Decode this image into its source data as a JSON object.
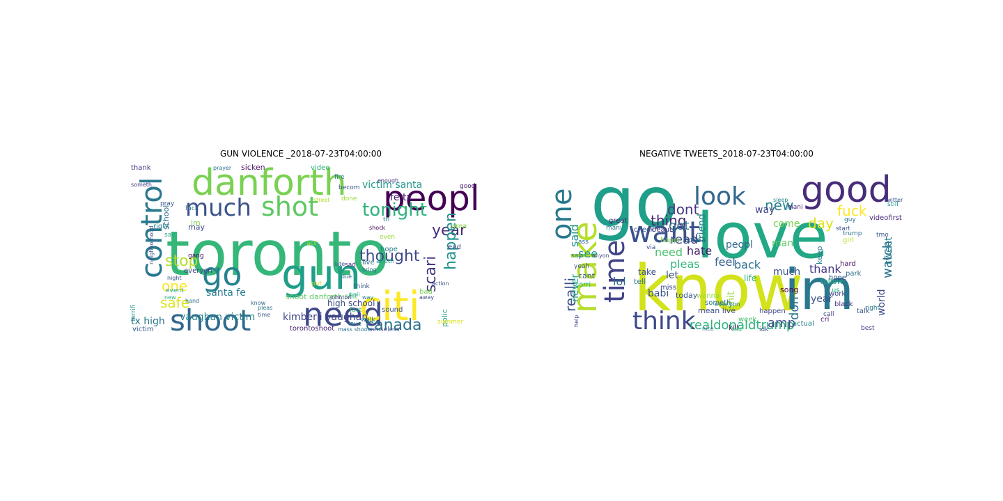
{
  "clouds": [
    {
      "title": "GUN VIOLENCE _2018-07-23T04:00:00",
      "words": [
        {
          "text": "toronto",
          "color": "#35b779"
        },
        {
          "text": "danforth",
          "color": "#7ad151"
        },
        {
          "text": "peopl",
          "color": "#440154"
        },
        {
          "text": "control",
          "color": "#2a788e"
        },
        {
          "text": "much",
          "color": "#3b528b"
        },
        {
          "text": "shot",
          "color": "#5ec962"
        },
        {
          "text": "go",
          "color": "#26828e"
        },
        {
          "text": "gun",
          "color": "#1f9e89"
        },
        {
          "text": "shoot",
          "color": "#31688e"
        },
        {
          "text": "need",
          "color": "#3e4989"
        },
        {
          "text": "citi",
          "color": "#fde725"
        },
        {
          "text": "tonight",
          "color": "#2db27d"
        },
        {
          "text": "year",
          "color": "#472d7b"
        },
        {
          "text": "happen",
          "color": "#21918c"
        },
        {
          "text": "thought",
          "color": "#3e4a89"
        },
        {
          "text": "scari",
          "color": "#443983"
        },
        {
          "text": "stop",
          "color": "#b5de2b"
        },
        {
          "text": "one",
          "color": "#fde725"
        },
        {
          "text": "safe",
          "color": "#dde318"
        },
        {
          "text": "canada",
          "color": "#2c728e"
        },
        {
          "text": "victim santa",
          "color": "#1f988b"
        },
        {
          "text": "fe tx",
          "color": "#481f70"
        },
        {
          "text": "kimberli vaughan",
          "color": "#414487"
        },
        {
          "text": "vaughan victim",
          "color": "#25848e"
        },
        {
          "text": "tx high",
          "color": "#2a768e"
        },
        {
          "text": "santa fe",
          "color": "#287d8e"
        },
        {
          "text": "high school",
          "color": "#3e4c8a"
        },
        {
          "text": "shoot danforth",
          "color": "#5ec962"
        },
        {
          "text": "torontoshoot",
          "color": "#482475"
        },
        {
          "text": "fuck",
          "color": "#2e6d8e"
        },
        {
          "text": "say",
          "color": "#22a884"
        },
        {
          "text": "right",
          "color": "#277f8e"
        },
        {
          "text": "pray",
          "color": "#3b528b"
        },
        {
          "text": "thank",
          "color": "#453882"
        },
        {
          "text": "sicken",
          "color": "#471365"
        },
        {
          "text": "video",
          "color": "#29af7f"
        },
        {
          "text": "enough",
          "color": "#46337e"
        },
        {
          "text": "anoth",
          "color": "#20a486"
        },
        {
          "text": "live",
          "color": "#2e6e8e"
        },
        {
          "text": "sad",
          "color": "#482878"
        },
        {
          "text": "hope",
          "color": "#26818e"
        },
        {
          "text": "even",
          "color": "#95d840"
        },
        {
          "text": "sound",
          "color": "#3b518b"
        },
        {
          "text": "walk",
          "color": "#25838e"
        },
        {
          "text": "fact",
          "color": "#35b779"
        },
        {
          "text": "shit",
          "color": "#4ac16d"
        },
        {
          "text": "think",
          "color": "#38598c"
        },
        {
          "text": "love",
          "color": "#2a768e"
        },
        {
          "text": "senseless",
          "color": "#3b528b"
        },
        {
          "text": "mass shoot",
          "color": "#2c738e"
        },
        {
          "text": "victim",
          "color": "#39568c"
        },
        {
          "text": "everyon",
          "color": "#414487"
        },
        {
          "text": "gang",
          "color": "#471063"
        },
        {
          "text": "school",
          "color": "#2d718e"
        },
        {
          "text": "may",
          "color": "#3f4889"
        },
        {
          "text": "im",
          "color": "#7ad151"
        },
        {
          "text": "terrifi",
          "color": "#21918c"
        },
        {
          "text": "polic",
          "color": "#1fa088"
        },
        {
          "text": "end",
          "color": "#443a83"
        },
        {
          "text": "area",
          "color": "#8fd744"
        },
        {
          "text": "act",
          "color": "#addc30"
        },
        {
          "text": "put",
          "color": "#c2df23"
        },
        {
          "text": "know",
          "color": "#2f6b8e"
        },
        {
          "text": "time",
          "color": "#365c8d"
        },
        {
          "text": "pleas",
          "color": "#297a8e"
        },
        {
          "text": "bad",
          "color": "#7ad151"
        },
        {
          "text": "away",
          "color": "#3f4788"
        },
        {
          "text": "action",
          "color": "#3d4d8a"
        },
        {
          "text": "summer",
          "color": "#d8e219"
        },
        {
          "text": "holi",
          "color": "#1e9c89"
        },
        {
          "text": "johntori",
          "color": "#443983"
        },
        {
          "text": "someth",
          "color": "#453781"
        },
        {
          "text": "event",
          "color": "#20a386"
        },
        {
          "text": "fire",
          "color": "#2a778e"
        },
        {
          "text": "becom",
          "color": "#3a548c"
        },
        {
          "text": "done",
          "color": "#a0da39"
        },
        {
          "text": "good",
          "color": "#482071"
        },
        {
          "text": "late",
          "color": "#38588c"
        },
        {
          "text": "due",
          "color": "#31668e"
        },
        {
          "text": "way",
          "color": "#277e8e"
        },
        {
          "text": "hand",
          "color": "#2b758e"
        },
        {
          "text": "new",
          "color": "#26ad81"
        },
        {
          "text": "night",
          "color": "#3a538b"
        },
        {
          "text": "prayer",
          "color": "#2c728e"
        },
        {
          "text": "street",
          "color": "#addc30"
        },
        {
          "text": "shock",
          "color": "#440154"
        },
        {
          "text": "th",
          "color": "#24878e"
        },
        {
          "text": "neighborhood",
          "color": "#3c4f8a"
        },
        {
          "text": "bring",
          "color": "#2b758e"
        }
      ]
    },
    {
      "title": "NEGATIVE TWEETS_2018-07-23T04:00:00",
      "words": [
        {
          "text": "love",
          "color": "#22a884"
        },
        {
          "text": "go",
          "color": "#1f9e89"
        },
        {
          "text": "know",
          "color": "#d2e21b"
        },
        {
          "text": "im",
          "color": "#2a788e"
        },
        {
          "text": "want",
          "color": "#3b528b"
        },
        {
          "text": "good",
          "color": "#472c7a"
        },
        {
          "text": "look",
          "color": "#31688e"
        },
        {
          "text": "one",
          "color": "#2a788e"
        },
        {
          "text": "make",
          "color": "#b5de2b"
        },
        {
          "text": "time",
          "color": "#414487"
        },
        {
          "text": "think",
          "color": "#3e4989"
        },
        {
          "text": "realdonaldtrump",
          "color": "#2db27d"
        },
        {
          "text": "realli",
          "color": "#3b528b"
        },
        {
          "text": "fuck",
          "color": "#fde725"
        },
        {
          "text": "watch",
          "color": "#2c728e"
        },
        {
          "text": "tweet",
          "color": "#277f8e"
        },
        {
          "text": "day",
          "color": "#dde318"
        },
        {
          "text": "new",
          "color": "#26828e"
        },
        {
          "text": "dont",
          "color": "#443983"
        },
        {
          "text": "said",
          "color": "#21918c"
        },
        {
          "text": "thing",
          "color": "#482878"
        },
        {
          "text": "got",
          "color": "#2a768e"
        },
        {
          "text": "read",
          "color": "#3e4a89"
        },
        {
          "text": "need",
          "color": "#4ac16d"
        },
        {
          "text": "hate",
          "color": "#481f70"
        },
        {
          "text": "pleas",
          "color": "#35b779"
        },
        {
          "text": "feel",
          "color": "#355f8d"
        },
        {
          "text": "back",
          "color": "#2e6e8e"
        },
        {
          "text": "thank",
          "color": "#443983"
        },
        {
          "text": "year",
          "color": "#3b528b"
        },
        {
          "text": "don",
          "color": "#2c728e"
        },
        {
          "text": "amp",
          "color": "#3e4c8a"
        },
        {
          "text": "lol",
          "color": "#2e6e8e"
        },
        {
          "text": "see",
          "color": "#1f988b"
        },
        {
          "text": "let",
          "color": "#3a538b"
        },
        {
          "text": "never",
          "color": "#20a486"
        },
        {
          "text": "shit",
          "color": "#95d840"
        },
        {
          "text": "much",
          "color": "#3b518b"
        },
        {
          "text": "come",
          "color": "#7ad151"
        },
        {
          "text": "way",
          "color": "#414487"
        },
        {
          "text": "peopl",
          "color": "#31688e"
        },
        {
          "text": "friend",
          "color": "#26818e"
        },
        {
          "text": "man",
          "color": "#5ec962"
        },
        {
          "text": "babi",
          "color": "#3a548c"
        },
        {
          "text": "cri",
          "color": "#471365"
        },
        {
          "text": "world",
          "color": "#3e4989"
        },
        {
          "text": "take",
          "color": "#3b518b"
        },
        {
          "text": "tell",
          "color": "#2c738e"
        },
        {
          "text": "cant",
          "color": "#38598c"
        },
        {
          "text": "sorri",
          "color": "#29af7f"
        },
        {
          "text": "great",
          "color": "#482475"
        },
        {
          "text": "check",
          "color": "#3b528b"
        },
        {
          "text": "beauti",
          "color": "#453882"
        },
        {
          "text": "mani",
          "color": "#2a778e"
        },
        {
          "text": "happi",
          "color": "#7ad151"
        },
        {
          "text": "gonna",
          "color": "#31668e"
        },
        {
          "text": "via",
          "color": "#3e4c8a"
        },
        {
          "text": "miss",
          "color": "#3f4788"
        },
        {
          "text": "today",
          "color": "#3b528b"
        },
        {
          "text": "wanna",
          "color": "#95d840"
        },
        {
          "text": "someth",
          "color": "#2c728e"
        },
        {
          "text": "everyon",
          "color": "#25838e"
        },
        {
          "text": "song",
          "color": "#440154"
        },
        {
          "text": "life",
          "color": "#35b779"
        },
        {
          "text": "follow",
          "color": "#20a486"
        },
        {
          "text": "work",
          "color": "#3e4a89"
        },
        {
          "text": "keep",
          "color": "#287d8e"
        },
        {
          "text": "hard",
          "color": "#471063"
        },
        {
          "text": "hope",
          "color": "#3b528b"
        },
        {
          "text": "us",
          "color": "#29af7f"
        },
        {
          "text": "black",
          "color": "#46337e"
        },
        {
          "text": "call",
          "color": "#3e4989"
        },
        {
          "text": "park",
          "color": "#2e6d8e"
        },
        {
          "text": "girl",
          "color": "#b5de2b"
        },
        {
          "text": "start",
          "color": "#3b528b"
        },
        {
          "text": "guy",
          "color": "#2c728e"
        },
        {
          "text": "videofirst",
          "color": "#482878"
        },
        {
          "text": "still",
          "color": "#1f988b"
        },
        {
          "text": "talk",
          "color": "#38598c"
        },
        {
          "text": "right",
          "color": "#2a788e"
        },
        {
          "text": "mean live",
          "color": "#3e4c8a"
        },
        {
          "text": "week",
          "color": "#4ac16d"
        },
        {
          "text": "happen",
          "color": "#3f4788"
        },
        {
          "text": "actual",
          "color": "#287d8e"
        },
        {
          "text": "idk",
          "color": "#3b528b"
        },
        {
          "text": "kill",
          "color": "#471365"
        },
        {
          "text": "nice",
          "color": "#2e6e8e"
        },
        {
          "text": "bad",
          "color": "#35b779"
        },
        {
          "text": "help",
          "color": "#3e4989"
        },
        {
          "text": "say",
          "color": "#2a768e"
        },
        {
          "text": "yeah",
          "color": "#3b528b"
        },
        {
          "text": "ass",
          "color": "#31688e"
        },
        {
          "text": "anyon",
          "color": "#3e4a89"
        },
        {
          "text": "best",
          "color": "#443983"
        },
        {
          "text": "trump",
          "color": "#2c728e"
        },
        {
          "text": "sleep",
          "color": "#26818e"
        },
        {
          "text": "twitter",
          "color": "#3b528b"
        },
        {
          "text": "mani",
          "color": "#482475"
        },
        {
          "text": "tmo",
          "color": "#38598c"
        },
        {
          "text": "game",
          "color": "#3e4989"
        }
      ]
    }
  ]
}
